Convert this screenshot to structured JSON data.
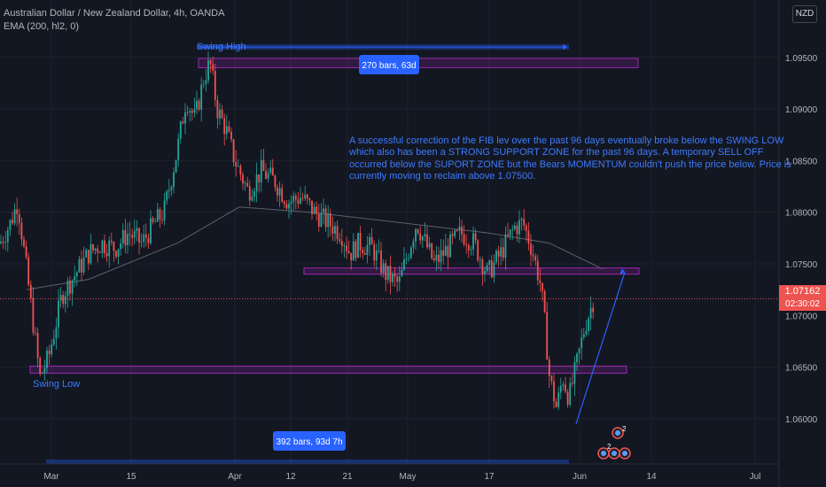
{
  "header": {
    "symbol_line": "Australian Dollar / New Zealand Dollar, 4h, OANDA",
    "indicator_line": "EMA (200, hl2, 0)",
    "currency_button": "NZD"
  },
  "price_axis": {
    "ticks": [
      "1.09500",
      "1.09000",
      "1.08500",
      "1.08000",
      "1.07500",
      "1.06500",
      "1.06000"
    ],
    "tick_values": [
      1.095,
      1.09,
      1.085,
      1.08,
      1.075,
      1.065,
      1.06
    ],
    "current_price": "1.07162",
    "countdown": "02:30:02",
    "hidden_price_label": "1.07000"
  },
  "time_axis": {
    "labels": [
      "Mar",
      "15",
      "Apr",
      "12",
      "21",
      "May",
      "17",
      "Jun",
      "14",
      "Jul"
    ]
  },
  "annotations": {
    "swing_high": "Swing High",
    "swing_low": "Swing Low",
    "bars_top": "270 bars, 63d",
    "bars_bottom": "392 bars, 93d 7h",
    "note": "A successful correction of the FIB lev over the past 96 days eventually broke below the SWING LOW which also has been a STRONG SUPPORT ZONE for the past 96 days. A temporary SELL OFF occurred below the SUPORT ZONE but the Bears MOMENTUM couldn't push the price below. Price is currently moving to reclaim above 1.07500."
  },
  "zones": [
    {
      "label": "swing-high-zone",
      "low": 1.094,
      "high": 1.0949
    },
    {
      "label": "support-zone",
      "low": 1.074,
      "high": 1.0746
    },
    {
      "label": "swing-low-zone",
      "low": 1.0644,
      "high": 1.0651
    }
  ],
  "colors": {
    "background": "#131722",
    "grid": "#1e222d",
    "bull": "#26a69a",
    "bear": "#ef5350",
    "zone": "#9c27b0",
    "annotation_blue": "#2962ff",
    "ema": "#5d606b"
  },
  "chart_data": {
    "type": "candlestick",
    "title": "Australian Dollar / New Zealand Dollar, 4h, OANDA",
    "ylim": [
      1.0557,
      1.0995
    ],
    "current_price": 1.07162,
    "close_path": [
      [
        0,
        1.077
      ],
      [
        12,
        1.079
      ],
      [
        20,
        1.081
      ],
      [
        32,
        1.073
      ],
      [
        45,
        1.064
      ],
      [
        55,
        1.066
      ],
      [
        70,
        1.072
      ],
      [
        85,
        1.074
      ],
      [
        100,
        1.076
      ],
      [
        115,
        1.077
      ],
      [
        130,
        1.0765
      ],
      [
        145,
        1.078
      ],
      [
        160,
        1.077
      ],
      [
        175,
        1.079
      ],
      [
        185,
        1.08
      ],
      [
        200,
        1.086
      ],
      [
        210,
        1.091
      ],
      [
        220,
        1.089
      ],
      [
        230,
        1.093
      ],
      [
        237,
        1.0945
      ],
      [
        245,
        1.09
      ],
      [
        255,
        1.088
      ],
      [
        265,
        1.085
      ],
      [
        280,
        1.082
      ],
      [
        295,
        1.084
      ],
      [
        310,
        1.083
      ],
      [
        325,
        1.081
      ],
      [
        340,
        1.0815
      ],
      [
        355,
        1.08
      ],
      [
        370,
        1.079
      ],
      [
        385,
        1.078
      ],
      [
        395,
        1.076
      ],
      [
        405,
        1.077
      ],
      [
        420,
        1.0765
      ],
      [
        435,
        1.074
      ],
      [
        450,
        1.073
      ],
      [
        460,
        1.076
      ],
      [
        470,
        1.079
      ],
      [
        480,
        1.077
      ],
      [
        490,
        1.075
      ],
      [
        505,
        1.0765
      ],
      [
        520,
        1.078
      ],
      [
        535,
        1.077
      ],
      [
        550,
        1.074
      ],
      [
        565,
        1.076
      ],
      [
        580,
        1.0785
      ],
      [
        590,
        1.079
      ],
      [
        600,
        1.0765
      ],
      [
        610,
        1.073
      ],
      [
        615,
        1.069
      ],
      [
        620,
        1.064
      ],
      [
        628,
        1.061
      ],
      [
        635,
        1.064
      ],
      [
        642,
        1.062
      ],
      [
        650,
        1.065
      ],
      [
        660,
        1.069
      ],
      [
        670,
        1.0716
      ]
    ],
    "ema_path": [
      [
        30,
        1.0725
      ],
      [
        100,
        1.0735
      ],
      [
        200,
        1.077
      ],
      [
        270,
        1.0805
      ],
      [
        350,
        1.08
      ],
      [
        450,
        1.079
      ],
      [
        550,
        1.078
      ],
      [
        620,
        1.077
      ],
      [
        680,
        1.0745
      ]
    ],
    "projection": {
      "from": [
        650,
        1.0595
      ],
      "to": [
        705,
        1.0742
      ]
    },
    "swing_high_price": 1.096,
    "swing_low_price": 1.0644,
    "measure_top": {
      "bars": 270,
      "days": "63d"
    },
    "measure_bottom": {
      "bars": 392,
      "days": "93d 7h"
    },
    "x_labels": [
      "Mar",
      "15",
      "Apr",
      "12",
      "21",
      "May",
      "17",
      "Jun",
      "14",
      "Jul"
    ],
    "y_ticks": [
      "1.09500",
      "1.09000",
      "1.08500",
      "1.08000",
      "1.07500",
      "1.06500",
      "1.06000"
    ]
  }
}
